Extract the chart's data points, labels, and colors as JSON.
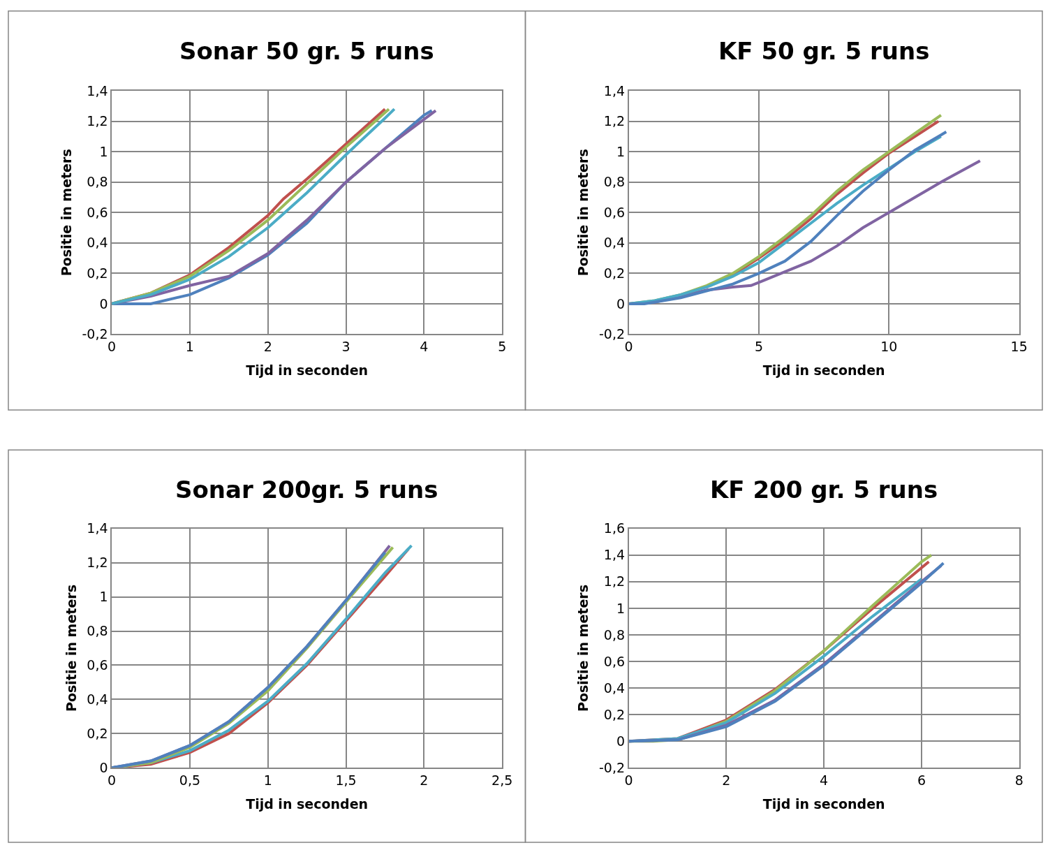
{
  "chart_data": [
    {
      "type": "line",
      "title": "Sonar 50 gr. 5 runs",
      "xlabel": "Tijd in seconden",
      "ylabel": "Positie in meters",
      "grid": true,
      "marker": "none",
      "line_style": "solid",
      "xlim": [
        0,
        5
      ],
      "xticks": [
        0,
        1,
        2,
        3,
        4,
        5
      ],
      "ylim": [
        -0.2,
        1.4
      ],
      "yticks": [
        {
          "value": -0.2,
          "label": "-0,2"
        },
        0,
        {
          "value": 0.2,
          "label": "0,2"
        },
        {
          "value": 0.4,
          "label": "0,4"
        },
        {
          "value": 0.6,
          "label": "0,6"
        },
        {
          "value": 0.8,
          "label": "0,8"
        },
        1,
        {
          "value": 1.2,
          "label": "1,2"
        },
        {
          "value": 1.4,
          "label": "1,4"
        }
      ],
      "series": [
        {
          "color": "#4f81bd",
          "x": [
            0,
            0.5,
            1,
            1.5,
            2,
            2.5,
            3,
            3.5,
            4,
            4.1
          ],
          "values": [
            0,
            0,
            0.06,
            0.17,
            0.32,
            0.53,
            0.8,
            1.02,
            1.24,
            1.27
          ]
        },
        {
          "color": "#c0504d",
          "x": [
            0,
            0.5,
            1,
            1.5,
            2,
            2.2,
            2.5,
            3,
            3.5
          ],
          "values": [
            0,
            0.07,
            0.19,
            0.37,
            0.58,
            0.69,
            0.82,
            1.05,
            1.28
          ]
        },
        {
          "color": "#9bbb59",
          "x": [
            0,
            0.5,
            1,
            1.5,
            2,
            2.5,
            3,
            3.55
          ],
          "values": [
            0,
            0.07,
            0.18,
            0.35,
            0.55,
            0.79,
            1.03,
            1.28
          ]
        },
        {
          "color": "#8064a2",
          "x": [
            0,
            0.5,
            1,
            1.5,
            2,
            2.5,
            3,
            3.5,
            4.15
          ],
          "values": [
            0,
            0.05,
            0.12,
            0.18,
            0.33,
            0.55,
            0.8,
            1.02,
            1.27
          ]
        },
        {
          "color": "#4bacc6",
          "x": [
            0,
            0.5,
            1,
            1.5,
            2,
            2.5,
            3,
            3.5,
            3.62
          ],
          "values": [
            0,
            0.06,
            0.16,
            0.31,
            0.5,
            0.73,
            0.98,
            1.22,
            1.28
          ]
        }
      ]
    },
    {
      "type": "line",
      "title": "KF 50 gr. 5 runs",
      "xlabel": "Tijd in seconden",
      "ylabel": "Positie in meters",
      "grid": true,
      "marker": "none",
      "line_style": "solid",
      "xlim": [
        0,
        15
      ],
      "xticks": [
        0,
        5,
        10,
        15
      ],
      "ylim": [
        -0.2,
        1.4
      ],
      "yticks": [
        {
          "value": -0.2,
          "label": "-0,2"
        },
        0,
        {
          "value": 0.2,
          "label": "0,2"
        },
        {
          "value": 0.4,
          "label": "0,4"
        },
        {
          "value": 0.6,
          "label": "0,6"
        },
        {
          "value": 0.8,
          "label": "0,8"
        },
        1,
        {
          "value": 1.2,
          "label": "1,2"
        },
        {
          "value": 1.4,
          "label": "1,4"
        }
      ],
      "series": [
        {
          "color": "#c0504d",
          "x": [
            3,
            4,
            5,
            6,
            7,
            8,
            9,
            10,
            11,
            11.9
          ],
          "values": [
            0.11,
            0.19,
            0.3,
            0.42,
            0.56,
            0.72,
            0.86,
            0.99,
            1.1,
            1.2
          ]
        },
        {
          "color": "#9bbb59",
          "x": [
            0,
            1,
            2,
            3,
            4,
            5,
            6,
            7,
            8,
            9,
            10,
            11,
            12
          ],
          "values": [
            0,
            0.02,
            0.06,
            0.12,
            0.2,
            0.31,
            0.44,
            0.58,
            0.74,
            0.88,
            1.0,
            1.12,
            1.24
          ]
        },
        {
          "color": "#8064a2",
          "x": [
            0,
            1,
            2,
            3,
            4,
            4.7,
            5,
            6,
            7,
            8,
            9,
            10,
            11,
            12,
            13.5
          ],
          "values": [
            0,
            0.01,
            0.05,
            0.09,
            0.11,
            0.12,
            0.14,
            0.21,
            0.28,
            0.38,
            0.5,
            0.6,
            0.7,
            0.8,
            0.94
          ]
        },
        {
          "color": "#4bacc6",
          "x": [
            0,
            1,
            2,
            3,
            4,
            5,
            6,
            7,
            8,
            9,
            10,
            11,
            12
          ],
          "values": [
            0,
            0.02,
            0.06,
            0.11,
            0.18,
            0.27,
            0.4,
            0.53,
            0.66,
            0.78,
            0.89,
            1.0,
            1.1
          ]
        },
        {
          "color": "#4f81bd",
          "x": [
            0,
            0.6,
            2,
            4,
            5,
            6,
            7,
            8,
            9,
            10,
            11,
            12,
            12.2
          ],
          "values": [
            0,
            0,
            0.04,
            0.13,
            0.2,
            0.28,
            0.41,
            0.58,
            0.74,
            0.88,
            1.01,
            1.11,
            1.13
          ]
        }
      ]
    },
    {
      "type": "line",
      "title": "Sonar 200gr. 5 runs",
      "xlabel": "Tijd in seconden",
      "ylabel": "Positie in meters",
      "grid": true,
      "marker": "none",
      "line_style": "solid",
      "xlim": [
        0,
        2.5
      ],
      "xticks": [
        0,
        {
          "value": 0.5,
          "label": "0,5"
        },
        1,
        {
          "value": 1.5,
          "label": "1,5"
        },
        2,
        {
          "value": 2.5,
          "label": "2,5"
        }
      ],
      "ylim": [
        0,
        1.4
      ],
      "yticks": [
        0,
        {
          "value": 0.2,
          "label": "0,2"
        },
        {
          "value": 0.4,
          "label": "0,4"
        },
        {
          "value": 0.6,
          "label": "0,6"
        },
        {
          "value": 0.8,
          "label": "0,8"
        },
        1,
        {
          "value": 1.2,
          "label": "1,2"
        },
        {
          "value": 1.4,
          "label": "1,4"
        }
      ],
      "series": [
        {
          "color": "#c0504d",
          "x": [
            0,
            0.25,
            0.5,
            0.75,
            1,
            1.25,
            1.5,
            1.75,
            1.9
          ],
          "values": [
            0,
            0.02,
            0.09,
            0.2,
            0.38,
            0.6,
            0.86,
            1.12,
            1.28
          ]
        },
        {
          "color": "#4bacc6",
          "x": [
            0,
            0.25,
            0.5,
            0.75,
            1,
            1.25,
            1.5,
            1.75,
            1.92
          ],
          "values": [
            0,
            0.03,
            0.1,
            0.22,
            0.39,
            0.61,
            0.87,
            1.14,
            1.3
          ]
        },
        {
          "color": "#9bbb59",
          "x": [
            0,
            0.25,
            0.5,
            0.75,
            1,
            1.25,
            1.5,
            1.8
          ],
          "values": [
            0,
            0.03,
            0.12,
            0.26,
            0.45,
            0.7,
            0.97,
            1.29
          ]
        },
        {
          "color": "#8064a2",
          "x": [
            0,
            0.25,
            0.5,
            0.75,
            1,
            1.25,
            1.5,
            1.78
          ],
          "values": [
            0,
            0.04,
            0.13,
            0.27,
            0.47,
            0.71,
            0.98,
            1.3
          ]
        },
        {
          "color": "#4f81bd",
          "x": [
            0,
            0.25,
            0.5,
            0.75,
            1,
            1.25,
            1.5,
            1.75
          ],
          "values": [
            0,
            0.04,
            0.13,
            0.27,
            0.47,
            0.71,
            0.98,
            1.26
          ]
        }
      ]
    },
    {
      "type": "line",
      "title": "KF 200 gr. 5 runs",
      "xlabel": "Tijd in seconden",
      "ylabel": "Positie in meters",
      "grid": true,
      "marker": "none",
      "line_style": "solid",
      "xlim": [
        0,
        8
      ],
      "xticks": [
        0,
        2,
        4,
        6,
        8
      ],
      "ylim": [
        -0.2,
        1.6
      ],
      "yticks": [
        {
          "value": -0.2,
          "label": "-0,2"
        },
        0,
        {
          "value": 0.2,
          "label": "0,2"
        },
        {
          "value": 0.4,
          "label": "0,4"
        },
        {
          "value": 0.6,
          "label": "0,6"
        },
        {
          "value": 0.8,
          "label": "0,8"
        },
        1,
        {
          "value": 1.2,
          "label": "1,2"
        },
        {
          "value": 1.4,
          "label": "1,4"
        },
        {
          "value": 1.6,
          "label": "1,6"
        }
      ],
      "series": [
        {
          "color": "#c0504d",
          "x": [
            0,
            1,
            2,
            3,
            4,
            5,
            6.15
          ],
          "values": [
            0,
            0.02,
            0.16,
            0.39,
            0.68,
            1.0,
            1.35
          ]
        },
        {
          "color": "#9bbb59",
          "x": [
            0,
            0.5,
            1,
            2,
            3,
            4,
            5,
            6,
            6.2
          ],
          "values": [
            0,
            0,
            0.01,
            0.15,
            0.38,
            0.68,
            1.02,
            1.35,
            1.4
          ]
        },
        {
          "color": "#4bacc6",
          "x": [
            0,
            1,
            2,
            3,
            4,
            5,
            6
          ],
          "values": [
            0,
            0.02,
            0.14,
            0.36,
            0.64,
            0.94,
            1.22
          ]
        },
        {
          "color": "#8064a2",
          "x": [
            0,
            1,
            2,
            3,
            4,
            5,
            6,
            6.4
          ],
          "values": [
            0,
            0.01,
            0.12,
            0.31,
            0.58,
            0.89,
            1.2,
            1.32
          ]
        },
        {
          "color": "#4f81bd",
          "x": [
            0,
            1,
            2,
            3,
            4,
            5,
            6,
            6.45
          ],
          "values": [
            0,
            0.01,
            0.11,
            0.3,
            0.57,
            0.88,
            1.19,
            1.34
          ]
        }
      ]
    }
  ]
}
